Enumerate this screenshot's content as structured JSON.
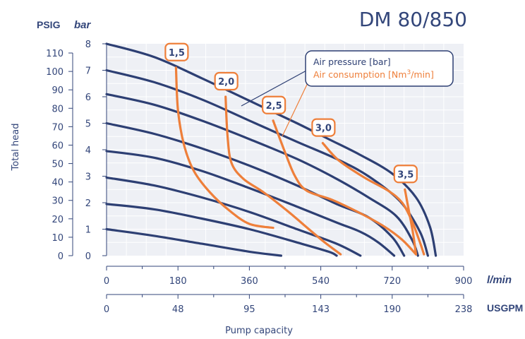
{
  "chart_data": {
    "type": "line",
    "title": "DM 80/850",
    "xlabel": "Pump capacity",
    "ylabel": "Total head",
    "units": {
      "psi": "PSIG",
      "bar": "bar",
      "lmin": "l/min",
      "usgpm": "USGPM"
    },
    "x_ticks_lmin": [
      "0",
      "180",
      "360",
      "540",
      "720",
      "900"
    ],
    "x_ticks_usgpm": [
      "0",
      "48",
      "95",
      "143",
      "190",
      "238"
    ],
    "y_ticks_bar": [
      "0",
      "1",
      "2",
      "3",
      "4",
      "5",
      "6",
      "7",
      "8"
    ],
    "y_ticks_psi": [
      "0",
      "10",
      "20",
      "30",
      "40",
      "50",
      "60",
      "70",
      "80",
      "90",
      "100",
      "110"
    ],
    "xlim": [
      0,
      900
    ],
    "ylim": [
      0,
      8
    ],
    "psi_max": 115,
    "colors": {
      "pressure": "#2d3f73",
      "consumption": "#ee7f3a",
      "text": "#33467a",
      "background": "#eef0f5",
      "grid": "#ffffff"
    },
    "legend": {
      "position": "top-right",
      "pressure_label": "Air pressure [bar]",
      "consumption_prefix": "Air consumption [Nm",
      "consumption_sup": "3",
      "consumption_suffix": "/min]"
    },
    "pressure_series": [
      {
        "points": [
          [
            0,
            8.0
          ],
          [
            120,
            7.5
          ],
          [
            240,
            6.7
          ],
          [
            360,
            5.85
          ],
          [
            480,
            5.0
          ],
          [
            560,
            4.4
          ],
          [
            640,
            3.8
          ],
          [
            720,
            3.1
          ],
          [
            780,
            2.2
          ],
          [
            815,
            1.1
          ],
          [
            830,
            0.0
          ]
        ]
      },
      {
        "points": [
          [
            0,
            7.0
          ],
          [
            120,
            6.55
          ],
          [
            240,
            5.9
          ],
          [
            360,
            5.1
          ],
          [
            480,
            4.3
          ],
          [
            580,
            3.65
          ],
          [
            660,
            3.0
          ],
          [
            740,
            2.05
          ],
          [
            790,
            0.9
          ],
          [
            810,
            0.0
          ]
        ]
      },
      {
        "points": [
          [
            0,
            6.1
          ],
          [
            120,
            5.7
          ],
          [
            240,
            5.1
          ],
          [
            360,
            4.4
          ],
          [
            480,
            3.65
          ],
          [
            580,
            2.9
          ],
          [
            660,
            2.2
          ],
          [
            730,
            1.5
          ],
          [
            770,
            0.6
          ],
          [
            785,
            0.0
          ]
        ]
      },
      {
        "points": [
          [
            0,
            5.0
          ],
          [
            120,
            4.6
          ],
          [
            240,
            4.05
          ],
          [
            360,
            3.4
          ],
          [
            480,
            2.65
          ],
          [
            580,
            1.95
          ],
          [
            660,
            1.45
          ],
          [
            720,
            0.7
          ],
          [
            750,
            0.0
          ]
        ]
      },
      {
        "points": [
          [
            0,
            3.95
          ],
          [
            120,
            3.7
          ],
          [
            240,
            3.2
          ],
          [
            360,
            2.55
          ],
          [
            480,
            1.85
          ],
          [
            580,
            1.25
          ],
          [
            640,
            0.9
          ],
          [
            685,
            0.5
          ],
          [
            725,
            0.0
          ]
        ]
      },
      {
        "points": [
          [
            0,
            2.95
          ],
          [
            120,
            2.65
          ],
          [
            240,
            2.2
          ],
          [
            360,
            1.65
          ],
          [
            480,
            1.0
          ],
          [
            580,
            0.45
          ],
          [
            640,
            0.0
          ]
        ]
      },
      {
        "points": [
          [
            0,
            1.95
          ],
          [
            120,
            1.75
          ],
          [
            240,
            1.4
          ],
          [
            360,
            1.0
          ],
          [
            480,
            0.5
          ],
          [
            560,
            0.15
          ],
          [
            580,
            0.0
          ]
        ]
      },
      {
        "points": [
          [
            0,
            1.0
          ],
          [
            120,
            0.75
          ],
          [
            240,
            0.45
          ],
          [
            360,
            0.15
          ],
          [
            440,
            0.0
          ]
        ]
      }
    ],
    "consumption_series": [
      {
        "name": "1,5",
        "points": [
          [
            175,
            7.1
          ],
          [
            180,
            5.5
          ],
          [
            195,
            4.2
          ],
          [
            220,
            3.2
          ],
          [
            260,
            2.4
          ],
          [
            310,
            1.7
          ],
          [
            360,
            1.2
          ],
          [
            420,
            1.05
          ]
        ]
      },
      {
        "name": "2,0",
        "points": [
          [
            300,
            6.0
          ],
          [
            305,
            4.5
          ],
          [
            315,
            3.5
          ],
          [
            345,
            2.9
          ],
          [
            395,
            2.4
          ],
          [
            455,
            1.7
          ],
          [
            510,
            1.0
          ],
          [
            550,
            0.5
          ],
          [
            590,
            0.05
          ]
        ]
      },
      {
        "name": "2,5",
        "points": [
          [
            420,
            5.1
          ],
          [
            450,
            3.9
          ],
          [
            475,
            3.0
          ],
          [
            505,
            2.45
          ],
          [
            570,
            2.1
          ],
          [
            640,
            1.6
          ],
          [
            700,
            1.1
          ],
          [
            745,
            0.6
          ],
          [
            780,
            0.05
          ]
        ]
      },
      {
        "name": "3,0",
        "points": [
          [
            545,
            4.25
          ],
          [
            585,
            3.6
          ],
          [
            650,
            2.95
          ],
          [
            710,
            2.45
          ],
          [
            745,
            2.0
          ],
          [
            770,
            1.3
          ],
          [
            790,
            0.5
          ],
          [
            800,
            0.05
          ]
        ]
      },
      {
        "name": "3,5",
        "points": [
          [
            752,
            2.5
          ],
          [
            762,
            1.7
          ],
          [
            772,
            0.9
          ],
          [
            780,
            0.05
          ]
        ]
      }
    ]
  }
}
